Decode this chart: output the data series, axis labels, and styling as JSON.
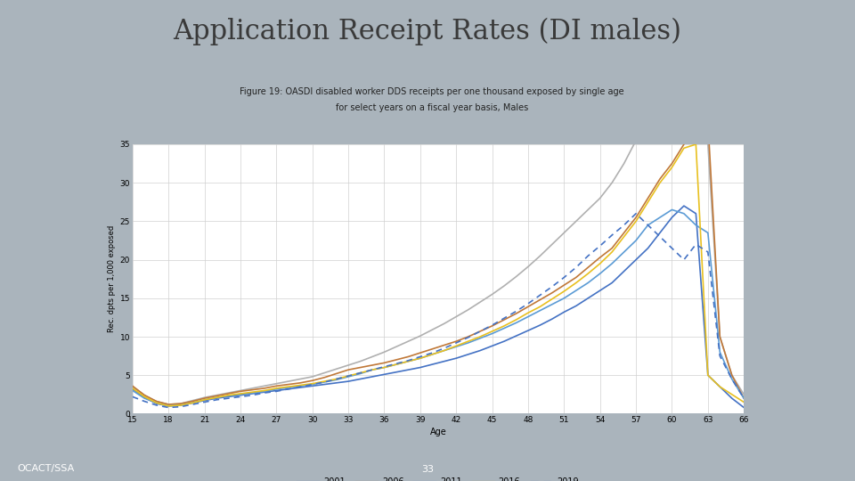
{
  "title": "Application Receipt Rates (DI males)",
  "subtitle_line1": "Figure 19: OASDI disabled worker DDS receipts per one thousand exposed by single age",
  "subtitle_line2": "for select years on a fiscal year basis, Males",
  "xlabel": "Age",
  "ylabel": "Rec. dpts per 1,000 exposed",
  "xlim": [
    15,
    66
  ],
  "ylim": [
    0,
    35
  ],
  "yticks": [
    0,
    5,
    10,
    15,
    20,
    25,
    30,
    35
  ],
  "xticks": [
    15,
    18,
    21,
    24,
    27,
    30,
    33,
    36,
    39,
    42,
    45,
    48,
    51,
    54,
    57,
    60,
    63,
    66
  ],
  "background_slide": "#aab4bc",
  "background_plot": "#ffffff",
  "title_color": "#3a3a3a",
  "footer_left": "OCACT/SSA",
  "footer_center": "33",
  "footer_bg": "#5a7080",
  "footer_text_color": "#ffffff",
  "colors": {
    "2001": "#4472c4",
    "2006": "#c07830",
    "2011": "#4472c4",
    "2016": "#e8c040",
    "2019": "#4472c4"
  },
  "linestyles": {
    "2001": "-",
    "2006": "-",
    "2011": "-",
    "2016": "-",
    "2019": "--"
  },
  "legend_colors": {
    "2001": "#4472c4",
    "2006": "#c07830",
    "2011": "#5090c0",
    "2016": "#e8c040",
    "2019": "#5090c0"
  },
  "ages": [
    15,
    16,
    17,
    18,
    19,
    20,
    21,
    22,
    23,
    24,
    25,
    26,
    27,
    28,
    29,
    30,
    31,
    32,
    33,
    34,
    35,
    36,
    37,
    38,
    39,
    40,
    41,
    42,
    43,
    44,
    45,
    46,
    47,
    48,
    49,
    50,
    51,
    52,
    53,
    54,
    55,
    56,
    57,
    58,
    59,
    60,
    61,
    62,
    63,
    64,
    65,
    66
  ],
  "data_2001": [
    3.2,
    2.1,
    1.3,
    1.0,
    1.1,
    1.4,
    1.7,
    2.0,
    2.2,
    2.4,
    2.6,
    2.8,
    3.0,
    3.2,
    3.4,
    3.6,
    3.8,
    4.0,
    4.2,
    4.5,
    4.8,
    5.1,
    5.4,
    5.7,
    6.0,
    6.4,
    6.8,
    7.2,
    7.7,
    8.2,
    8.8,
    9.4,
    10.1,
    10.8,
    11.5,
    12.3,
    13.2,
    14.0,
    15.0,
    16.0,
    17.0,
    18.5,
    20.0,
    21.5,
    23.5,
    25.5,
    27.0,
    26.0,
    5.0,
    3.5,
    2.0,
    0.8
  ],
  "data_2006": [
    3.6,
    2.4,
    1.6,
    1.2,
    1.3,
    1.6,
    2.0,
    2.3,
    2.6,
    2.9,
    3.1,
    3.3,
    3.6,
    3.8,
    4.0,
    4.3,
    4.7,
    5.2,
    5.7,
    6.0,
    6.3,
    6.6,
    7.0,
    7.4,
    7.9,
    8.4,
    8.9,
    9.4,
    10.0,
    10.7,
    11.4,
    12.2,
    13.0,
    13.9,
    14.8,
    15.7,
    16.7,
    17.7,
    19.0,
    20.3,
    21.5,
    23.5,
    25.5,
    28.0,
    30.5,
    32.5,
    35.0,
    38.0,
    38.0,
    10.0,
    5.0,
    2.0
  ],
  "data_2011": [
    3.0,
    2.0,
    1.4,
    1.0,
    1.1,
    1.4,
    1.8,
    2.1,
    2.3,
    2.5,
    2.7,
    2.9,
    3.2,
    3.4,
    3.6,
    3.8,
    4.1,
    4.4,
    4.8,
    5.2,
    5.7,
    6.0,
    6.4,
    6.8,
    7.2,
    7.7,
    8.2,
    8.7,
    9.2,
    9.8,
    10.4,
    11.1,
    11.8,
    12.6,
    13.4,
    14.2,
    15.0,
    16.0,
    17.0,
    18.2,
    19.5,
    21.0,
    22.5,
    24.5,
    25.5,
    26.5,
    26.0,
    24.5,
    23.5,
    8.0,
    4.5,
    2.0
  ],
  "data_2016": [
    3.3,
    2.2,
    1.4,
    1.0,
    1.1,
    1.4,
    1.8,
    2.1,
    2.4,
    2.6,
    2.8,
    3.0,
    3.3,
    3.5,
    3.7,
    3.9,
    4.2,
    4.5,
    4.9,
    5.3,
    5.7,
    6.0,
    6.4,
    6.8,
    7.2,
    7.7,
    8.2,
    8.8,
    9.4,
    10.0,
    10.7,
    11.4,
    12.2,
    13.1,
    13.9,
    14.9,
    15.9,
    17.0,
    18.2,
    19.5,
    21.0,
    23.0,
    25.0,
    27.5,
    30.0,
    32.0,
    34.5,
    35.0,
    5.0,
    3.5,
    2.5,
    1.5
  ],
  "data_2019": [
    2.2,
    1.6,
    1.1,
    0.8,
    0.9,
    1.2,
    1.5,
    1.8,
    2.0,
    2.2,
    2.4,
    2.7,
    2.9,
    3.2,
    3.5,
    3.8,
    4.1,
    4.5,
    4.9,
    5.3,
    5.7,
    6.1,
    6.5,
    6.9,
    7.4,
    7.9,
    8.5,
    9.2,
    9.9,
    10.7,
    11.5,
    12.4,
    13.3,
    14.3,
    15.4,
    16.5,
    17.7,
    19.0,
    20.5,
    21.8,
    23.2,
    24.5,
    26.0,
    24.5,
    23.0,
    21.5,
    20.0,
    22.0,
    21.0,
    7.5,
    4.5,
    2.0
  ],
  "data_gray_2016": [
    3.5,
    2.4,
    1.6,
    1.2,
    1.3,
    1.7,
    2.1,
    2.4,
    2.7,
    3.0,
    3.3,
    3.6,
    3.9,
    4.2,
    4.5,
    4.8,
    5.3,
    5.8,
    6.3,
    6.8,
    7.4,
    8.0,
    8.7,
    9.4,
    10.1,
    10.9,
    11.7,
    12.6,
    13.5,
    14.5,
    15.5,
    16.6,
    17.8,
    19.1,
    20.5,
    22.0,
    23.5,
    25.0,
    26.5,
    28.0,
    30.0,
    32.5,
    35.5,
    38.5,
    40.0,
    41.0,
    39.5,
    38.0,
    35.0,
    10.0,
    5.0,
    2.5
  ]
}
